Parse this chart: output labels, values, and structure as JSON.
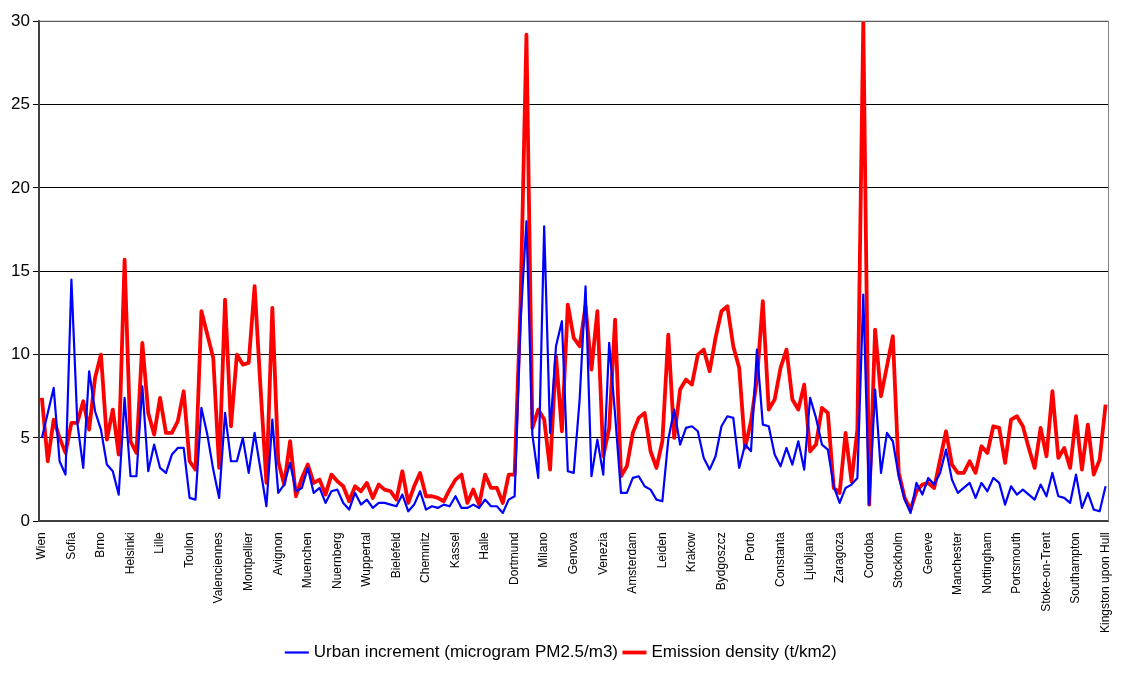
{
  "chart_data": {
    "type": "line",
    "categories": [
      "Wien",
      null,
      null,
      null,
      null,
      "Sofia",
      null,
      null,
      null,
      null,
      "Brno",
      null,
      null,
      null,
      null,
      "Helsinki",
      null,
      null,
      null,
      null,
      "Lille",
      null,
      null,
      null,
      null,
      "Toulon",
      null,
      null,
      null,
      null,
      "Valenciennes",
      null,
      null,
      null,
      null,
      "Montpellier",
      null,
      null,
      null,
      null,
      "Avignon",
      null,
      null,
      null,
      null,
      "Muenchen",
      null,
      null,
      null,
      null,
      "Nuernberg",
      null,
      null,
      null,
      null,
      "Wuppertal",
      null,
      null,
      null,
      null,
      "Bielefeld",
      null,
      null,
      null,
      null,
      "Chemnitz",
      null,
      null,
      null,
      null,
      "Kassel",
      null,
      null,
      null,
      null,
      "Halle",
      null,
      null,
      null,
      null,
      "Dortmund",
      null,
      null,
      null,
      null,
      "Milano",
      null,
      null,
      null,
      null,
      "Genova",
      null,
      null,
      null,
      null,
      "Venezia",
      null,
      null,
      null,
      null,
      "Amsterdam",
      null,
      null,
      null,
      null,
      "Leiden",
      null,
      null,
      null,
      null,
      "Krakow",
      null,
      null,
      null,
      null,
      "Bydgoszcz",
      null,
      null,
      null,
      null,
      "Porto",
      null,
      null,
      null,
      null,
      "Constanta",
      null,
      null,
      null,
      null,
      "Ljubljana",
      null,
      null,
      null,
      null,
      "Zaragoza",
      null,
      null,
      null,
      null,
      "Cordoba",
      null,
      null,
      null,
      null,
      "Stockholm",
      null,
      null,
      null,
      null,
      "Geneve",
      null,
      null,
      null,
      null,
      "Manchester",
      null,
      null,
      null,
      null,
      "Nottingham",
      null,
      null,
      null,
      null,
      "Portsmouth",
      null,
      null,
      null,
      null,
      "Stoke-on-Trent",
      null,
      null,
      null,
      null,
      "Southampton",
      null,
      null,
      null,
      null,
      "Kingston upon Hull"
    ],
    "series": [
      {
        "name": "Urban increment (microgram PM2.5/m3)",
        "color": "#0000ff",
        "values": [
          5.0,
          6.5,
          8.0,
          3.6,
          2.8,
          14.5,
          5.9,
          3.2,
          9.0,
          6.6,
          5.5,
          3.4,
          3.0,
          1.6,
          7.4,
          2.7,
          2.7,
          8.1,
          3.0,
          4.6,
          3.2,
          2.9,
          4.0,
          4.4,
          4.4,
          1.4,
          1.3,
          6.8,
          5.2,
          3.1,
          1.4,
          6.5,
          3.6,
          3.6,
          5.0,
          2.9,
          5.3,
          3.1,
          0.9,
          6.1,
          1.7,
          2.2,
          3.5,
          1.8,
          2.0,
          3.2,
          1.7,
          2.0,
          1.1,
          1.8,
          1.9,
          1.1,
          0.7,
          1.7,
          1.0,
          1.3,
          0.8,
          1.1,
          1.1,
          1.0,
          0.9,
          1.6,
          0.6,
          1.0,
          1.8,
          0.7,
          0.9,
          0.8,
          1.0,
          0.9,
          1.5,
          0.8,
          0.8,
          1.0,
          0.8,
          1.3,
          0.9,
          0.9,
          0.5,
          1.3,
          1.5,
          12.0,
          18.0,
          5.2,
          2.6,
          17.7,
          5.3,
          10.5,
          12.0,
          3.0,
          2.9,
          7.3,
          14.1,
          2.7,
          4.9,
          2.8,
          10.7,
          6.4,
          1.7,
          1.7,
          2.6,
          2.7,
          2.1,
          1.9,
          1.3,
          1.2,
          4.9,
          6.7,
          4.6,
          5.6,
          5.7,
          5.4,
          3.8,
          3.1,
          3.9,
          5.7,
          6.3,
          6.2,
          3.2,
          4.6,
          4.2,
          10.3,
          5.8,
          5.7,
          4.0,
          3.3,
          4.4,
          3.4,
          4.8,
          3.1,
          7.4,
          6.2,
          4.6,
          4.3,
          2.1,
          1.1,
          2.0,
          2.2,
          2.6,
          13.6,
          1.0,
          7.9,
          2.9,
          5.3,
          4.8,
          2.7,
          1.3,
          0.5,
          2.3,
          1.6,
          2.6,
          2.2,
          2.9,
          4.3,
          2.5,
          1.7,
          2.0,
          2.3,
          1.4,
          2.3,
          1.8,
          2.6,
          2.3,
          1.0,
          2.1,
          1.6,
          1.9,
          1.6,
          1.3,
          2.2,
          1.5,
          2.9,
          1.5,
          1.4,
          1.1,
          2.8,
          0.8,
          1.7,
          0.7,
          0.6,
          2.1
        ]
      },
      {
        "name": "Emission density (t/km2)",
        "color": "#ff0000",
        "values": [
          7.4,
          3.6,
          6.1,
          5.0,
          4.1,
          5.9,
          5.9,
          7.2,
          5.5,
          8.6,
          10.0,
          4.9,
          6.7,
          4.0,
          15.7,
          4.8,
          4.1,
          10.7,
          6.5,
          5.2,
          7.4,
          5.3,
          5.3,
          6.0,
          7.8,
          3.6,
          3.1,
          12.6,
          11.2,
          9.8,
          3.2,
          13.3,
          5.7,
          10.0,
          9.4,
          9.5,
          14.1,
          8.0,
          2.3,
          12.8,
          3.6,
          2.2,
          4.8,
          1.5,
          2.6,
          3.4,
          2.3,
          2.5,
          1.6,
          2.8,
          2.4,
          2.1,
          1.2,
          2.1,
          1.8,
          2.3,
          1.4,
          2.2,
          1.9,
          1.8,
          1.3,
          3.0,
          1.1,
          2.1,
          2.9,
          1.5,
          1.5,
          1.4,
          1.2,
          1.9,
          2.5,
          2.8,
          1.1,
          1.9,
          1.0,
          2.8,
          2.0,
          2.0,
          1.1,
          2.8,
          2.8,
          13.0,
          29.2,
          5.6,
          6.7,
          6.1,
          3.1,
          9.9,
          5.4,
          13.0,
          11.0,
          10.5,
          12.9,
          9.1,
          12.6,
          3.9,
          5.6,
          12.1,
          2.7,
          3.3,
          5.3,
          6.2,
          6.5,
          4.2,
          3.2,
          4.8,
          11.2,
          5.0,
          7.9,
          8.5,
          8.2,
          10.0,
          10.3,
          9.0,
          11.0,
          12.6,
          12.9,
          10.5,
          9.2,
          4.4,
          6.0,
          8.5,
          13.2,
          6.7,
          7.3,
          9.2,
          10.3,
          7.3,
          6.7,
          8.2,
          4.2,
          4.6,
          6.8,
          6.5,
          2.0,
          1.7,
          5.3,
          2.4,
          5.5,
          30,
          1.0,
          11.5,
          7.5,
          9.3,
          11.1,
          2.9,
          1.4,
          0.7,
          1.8,
          2.2,
          2.3,
          2.0,
          3.7,
          5.4,
          3.4,
          2.9,
          2.9,
          3.6,
          2.9,
          4.5,
          4.1,
          5.7,
          5.6,
          3.5,
          6.1,
          6.3,
          5.7,
          4.4,
          3.2,
          5.6,
          3.9,
          7.8,
          3.8,
          4.4,
          3.2,
          6.3,
          3.1,
          5.8,
          2.8,
          3.7,
          7.0
        ]
      }
    ],
    "ylim": [
      0,
      30
    ],
    "yticks": [
      0,
      5,
      10,
      15,
      20,
      25,
      30
    ],
    "grid": "y",
    "legend": "bottom",
    "marker": "none",
    "line_style": "solid"
  }
}
